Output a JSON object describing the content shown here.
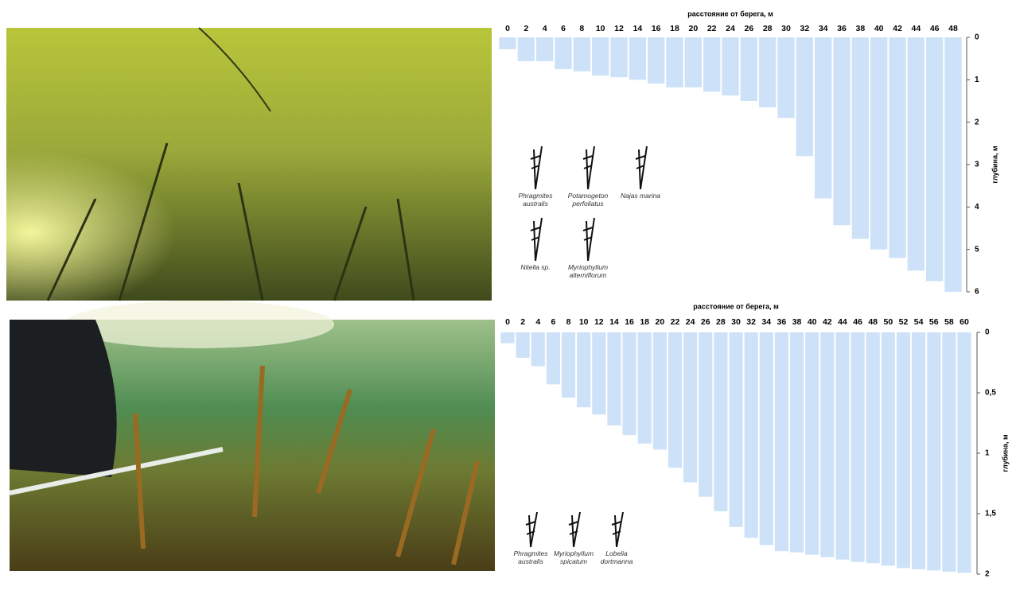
{
  "chart_data": [
    {
      "type": "bar",
      "xlabel": "расстояние от берега, м",
      "ylabel": "глубина, м",
      "categories": [
        "0",
        "2",
        "4",
        "6",
        "8",
        "10",
        "12",
        "14",
        "16",
        "18",
        "20",
        "22",
        "24",
        "26",
        "28",
        "30",
        "32",
        "34",
        "36",
        "38",
        "40",
        "42",
        "44",
        "46",
        "48"
      ],
      "values": [
        0.28,
        0.56,
        0.56,
        0.75,
        0.8,
        0.9,
        0.94,
        1.0,
        1.09,
        1.18,
        1.18,
        1.28,
        1.37,
        1.5,
        1.65,
        1.9,
        2.8,
        3.8,
        4.43,
        4.75,
        5.0,
        5.2,
        5.5,
        5.75,
        6.0
      ],
      "color": "#cde2f8",
      "ylim": [
        0,
        6
      ],
      "yticks": [
        0,
        1,
        2,
        3,
        4,
        5,
        6
      ],
      "species": [
        "Phragmites australis",
        "Potamogeton perfoliatus",
        "Najas marina",
        "Nitella sp.",
        "Myriophyllum alterniflorum"
      ]
    },
    {
      "type": "bar",
      "xlabel": "расстояние от берега, м",
      "ylabel": "глубина, м",
      "categories": [
        "0",
        "2",
        "4",
        "6",
        "8",
        "10",
        "12",
        "14",
        "16",
        "18",
        "20",
        "22",
        "24",
        "26",
        "28",
        "30",
        "32",
        "34",
        "36",
        "38",
        "40",
        "42",
        "44",
        "46",
        "48",
        "50",
        "52",
        "54",
        "56",
        "58",
        "60"
      ],
      "values": [
        0.09,
        0.21,
        0.28,
        0.43,
        0.54,
        0.62,
        0.68,
        0.77,
        0.85,
        0.92,
        0.97,
        1.12,
        1.24,
        1.36,
        1.48,
        1.61,
        1.7,
        1.76,
        1.81,
        1.82,
        1.84,
        1.86,
        1.88,
        1.9,
        1.91,
        1.93,
        1.95,
        1.96,
        1.97,
        1.98,
        1.99
      ],
      "color": "#cde2f8",
      "ylim": [
        0,
        2
      ],
      "yticks": [
        0,
        {
          "value": 0.5,
          "label": "0,5"
        },
        1,
        {
          "value": 1.5,
          "label": "1,5"
        },
        2
      ],
      "species": [
        "Phragmites australis",
        "Myriophyllum spicatum",
        "Lobelia dortmanna"
      ]
    }
  ]
}
